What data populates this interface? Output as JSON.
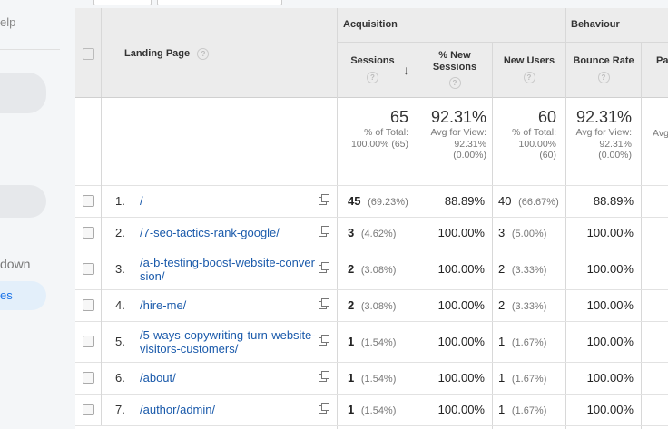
{
  "sidebar": {
    "help_label": "elp",
    "drilldown_label": "down",
    "active_item_label": "es"
  },
  "table": {
    "landing_page_header": "Landing Page",
    "groups": {
      "acquisition": "Acquisition",
      "behaviour": "Behaviour"
    },
    "columns": {
      "sessions": "Sessions",
      "new_sessions_line1": "% New",
      "new_sessions_line2": "Sessions",
      "new_users": "New Users",
      "bounce_rate": "Bounce Rate",
      "pages_partial": "Pa"
    },
    "help_glyph": "?",
    "sort_glyph": "↓",
    "totals": {
      "sessions": {
        "value": "65",
        "l1": "% of Total:",
        "l2": "100.00% (65)"
      },
      "new_sessions": {
        "value": "92.31%",
        "l1": "Avg for View:",
        "l2": "92.31%",
        "l3": "(0.00%)"
      },
      "new_users": {
        "value": "60",
        "l1": "% of Total:",
        "l2": "100.00%",
        "l3": "(60)"
      },
      "bounce_rate": {
        "value": "92.31%",
        "l1": "Avg for View:",
        "l2": "92.31%",
        "l3": "(0.00%)"
      },
      "pages_partial": "Avg"
    },
    "rows": [
      {
        "num": "1.",
        "l1": "/",
        "l2": "",
        "sessions": "45",
        "sessions_pct": "(69.23%)",
        "new_sessions": "88.89%",
        "new_users": "40",
        "new_users_pct": "(66.67%)",
        "bounce": "88.89%"
      },
      {
        "num": "2.",
        "l1": "/7-seo-tactics-rank-google/",
        "l2": "",
        "sessions": "3",
        "sessions_pct": "(4.62%)",
        "new_sessions": "100.00%",
        "new_users": "3",
        "new_users_pct": "(5.00%)",
        "bounce": "100.00%"
      },
      {
        "num": "3.",
        "l1": "/a-b-testing-boost-website-conver",
        "l2": "sion/",
        "sessions": "2",
        "sessions_pct": "(3.08%)",
        "new_sessions": "100.00%",
        "new_users": "2",
        "new_users_pct": "(3.33%)",
        "bounce": "100.00%"
      },
      {
        "num": "4.",
        "l1": "/hire-me/",
        "l2": "",
        "sessions": "2",
        "sessions_pct": "(3.08%)",
        "new_sessions": "100.00%",
        "new_users": "2",
        "new_users_pct": "(3.33%)",
        "bounce": "100.00%"
      },
      {
        "num": "5.",
        "l1": "/5-ways-copywriting-turn-website-",
        "l2": "visitors-customers/",
        "sessions": "1",
        "sessions_pct": "(1.54%)",
        "new_sessions": "100.00%",
        "new_users": "1",
        "new_users_pct": "(1.67%)",
        "bounce": "100.00%"
      },
      {
        "num": "6.",
        "l1": "/about/",
        "l2": "",
        "sessions": "1",
        "sessions_pct": "(1.54%)",
        "new_sessions": "100.00%",
        "new_users": "1",
        "new_users_pct": "(1.67%)",
        "bounce": "100.00%"
      },
      {
        "num": "7.",
        "l1": "/author/admin/",
        "l2": "",
        "sessions": "1",
        "sessions_pct": "(1.54%)",
        "new_sessions": "100.00%",
        "new_users": "1",
        "new_users_pct": "(1.67%)",
        "bounce": "100.00%"
      }
    ]
  }
}
